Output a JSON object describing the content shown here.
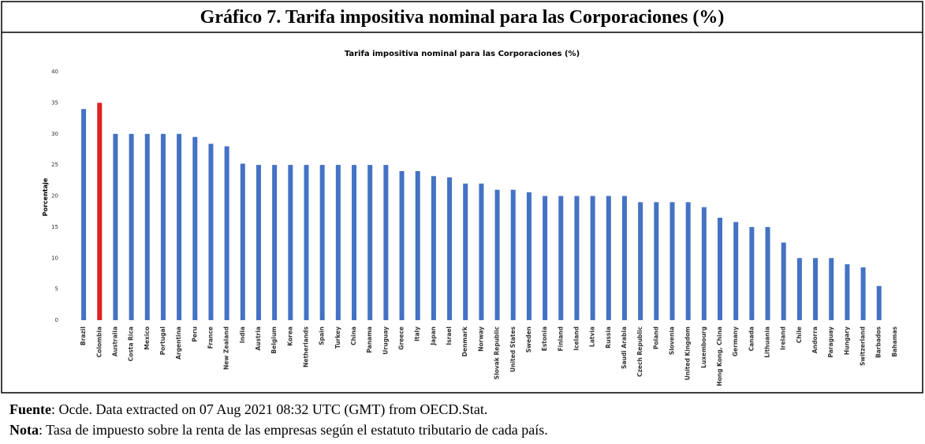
{
  "header": {
    "title": "Gráfico 7. Tarifa impositiva nominal para las Corporaciones (%)"
  },
  "chart_data": {
    "type": "bar",
    "title": "Tarifa impositiva nominal para las Corporaciones (%)",
    "y_label": "Porcentaje",
    "categories": [
      "Brazil",
      "Colombia",
      "Australia",
      "Costa Rica",
      "Mexico",
      "Portugal",
      "Argentina",
      "Peru",
      "France",
      "New Zealand",
      "India",
      "Austria",
      "Belgium",
      "Korea",
      "Netherlands",
      "Spain",
      "Turkey",
      "China",
      "Panama",
      "Uruguay",
      "Greece",
      "Italy",
      "Japan",
      "Israel",
      "Denmark",
      "Norway",
      "Slovak Republic",
      "United States",
      "Sweden",
      "Estonia",
      "Finland",
      "Iceland",
      "Latvia",
      "Russia",
      "Saudi Arabia",
      "Czech Republic",
      "Poland",
      "Slovenia",
      "United Kingdom",
      "Luxembourg",
      "Hong Kong, China",
      "Germany",
      "Canada",
      "Lithuania",
      "Ireland",
      "Chile",
      "Andorra",
      "Paraguay",
      "Hungary",
      "Switzerland",
      "Barbados",
      "Bahamas"
    ],
    "values": [
      34,
      35,
      30,
      30,
      30,
      30,
      30,
      29.5,
      28.4,
      28,
      25.2,
      25,
      25,
      25,
      25,
      25,
      25,
      25,
      25,
      25,
      24,
      24,
      23.2,
      23,
      22,
      22,
      21,
      21,
      20.6,
      20,
      20,
      20,
      20,
      20,
      20,
      19,
      19,
      19,
      19,
      18.2,
      16.5,
      15.8,
      15,
      15,
      12.5,
      10,
      10,
      10,
      9,
      8.5,
      5.5,
      0
    ],
    "colors": [
      "#4472c4",
      "#e0201f",
      "#4472c4",
      "#4472c4",
      "#4472c4",
      "#4472c4",
      "#4472c4",
      "#4472c4",
      "#4472c4",
      "#4472c4",
      "#4472c4",
      "#4472c4",
      "#4472c4",
      "#4472c4",
      "#4472c4",
      "#4472c4",
      "#4472c4",
      "#4472c4",
      "#4472c4",
      "#4472c4",
      "#4472c4",
      "#4472c4",
      "#4472c4",
      "#4472c4",
      "#4472c4",
      "#4472c4",
      "#4472c4",
      "#4472c4",
      "#4472c4",
      "#4472c4",
      "#4472c4",
      "#4472c4",
      "#4472c4",
      "#4472c4",
      "#4472c4",
      "#4472c4",
      "#4472c4",
      "#4472c4",
      "#4472c4",
      "#4472c4",
      "#4472c4",
      "#4472c4",
      "#4472c4",
      "#4472c4",
      "#4472c4",
      "#4472c4",
      "#4472c4",
      "#4472c4",
      "#4472c4",
      "#4472c4",
      "#4472c4",
      "#4472c4"
    ],
    "ylim": [
      0,
      40
    ],
    "yticks": [
      0,
      5,
      10,
      15,
      20,
      25,
      30,
      35,
      40
    ],
    "grid": false
  },
  "footer": {
    "source_label": "Fuente",
    "source_text": ": Ocde. Data extracted on 07 Aug 2021 08:32 UTC (GMT) from OECD.Stat.",
    "note_label": "Nota",
    "note_text": ": Tasa de impuesto sobre la renta de las empresas según el estatuto tributario de cada país."
  }
}
